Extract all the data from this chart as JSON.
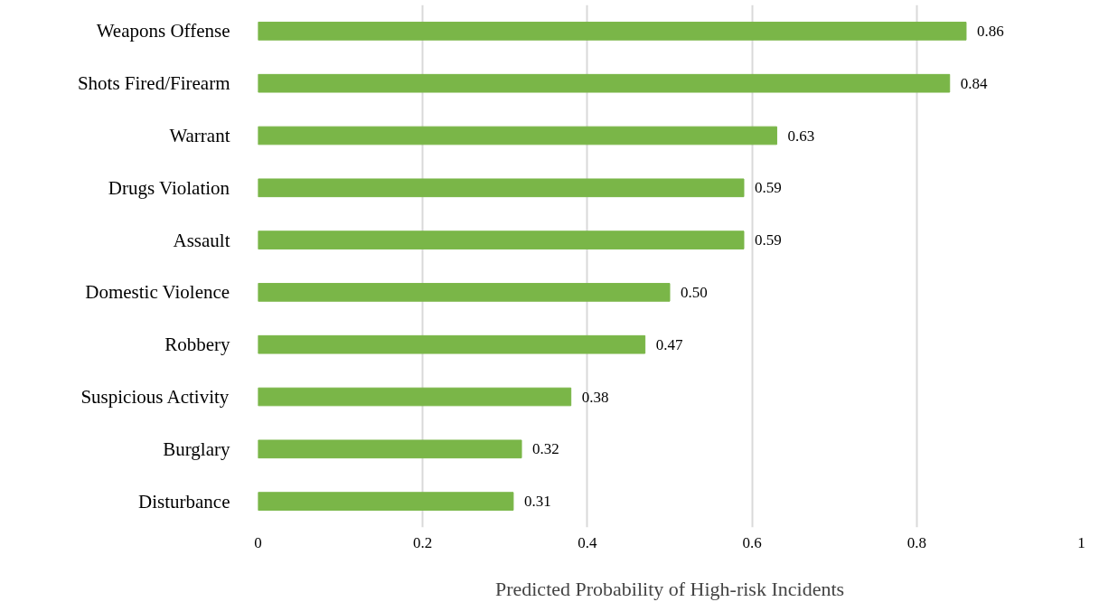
{
  "chart_data": {
    "type": "bar",
    "orientation": "horizontal",
    "xlabel": "Predicted Probability of High-risk Incidents",
    "categories": [
      "Weapons Offense",
      "Shots Fired/Firearm",
      "Warrant",
      "Drugs Violation",
      "Assault",
      "Domestic Violence",
      "Robbery",
      "Suspicious Activity",
      "Burglary",
      "Disturbance"
    ],
    "values": [
      0.86,
      0.84,
      0.63,
      0.59,
      0.59,
      0.5,
      0.47,
      0.38,
      0.32,
      0.31
    ],
    "value_labels": [
      "0.86",
      "0.84",
      "0.63",
      "0.59",
      "0.59",
      "0.50",
      "0.47",
      "0.38",
      "0.32",
      "0.31"
    ],
    "color": "#7ab648",
    "xlim": [
      0,
      1
    ],
    "xticks": [
      0,
      0.2,
      0.4,
      0.6,
      0.8,
      1
    ],
    "grid": "x"
  }
}
